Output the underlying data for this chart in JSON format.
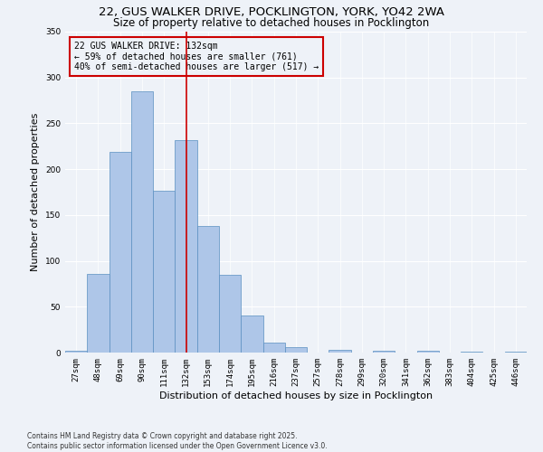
{
  "title_line1": "22, GUS WALKER DRIVE, POCKLINGTON, YORK, YO42 2WA",
  "title_line2": "Size of property relative to detached houses in Pocklington",
  "xlabel": "Distribution of detached houses by size in Pocklington",
  "ylabel": "Number of detached properties",
  "footnote": "Contains HM Land Registry data © Crown copyright and database right 2025.\nContains public sector information licensed under the Open Government Licence v3.0.",
  "annotation_line1": "22 GUS WALKER DRIVE: 132sqm",
  "annotation_line2": "← 59% of detached houses are smaller (761)",
  "annotation_line3": "40% of semi-detached houses are larger (517) →",
  "bar_color": "#aec6e8",
  "bar_edge_color": "#5a8fc0",
  "vline_color": "#cc0000",
  "annotation_box_color": "#cc0000",
  "background_color": "#eef2f8",
  "categories": [
    "27sqm",
    "48sqm",
    "69sqm",
    "90sqm",
    "111sqm",
    "132sqm",
    "153sqm",
    "174sqm",
    "195sqm",
    "216sqm",
    "237sqm",
    "257sqm",
    "278sqm",
    "299sqm",
    "320sqm",
    "341sqm",
    "362sqm",
    "383sqm",
    "404sqm",
    "425sqm",
    "446sqm"
  ],
  "values": [
    2,
    86,
    219,
    285,
    176,
    232,
    138,
    85,
    40,
    11,
    6,
    0,
    3,
    0,
    2,
    0,
    2,
    0,
    1,
    0,
    1
  ],
  "vline_x": 5,
  "ylim": [
    0,
    350
  ],
  "yticks": [
    0,
    50,
    100,
    150,
    200,
    250,
    300,
    350
  ],
  "grid_color": "#ffffff",
  "title_fontsize": 9.5,
  "subtitle_fontsize": 8.5,
  "axis_label_fontsize": 8,
  "tick_fontsize": 6.5,
  "annotation_fontsize": 7,
  "footnote_fontsize": 5.5
}
